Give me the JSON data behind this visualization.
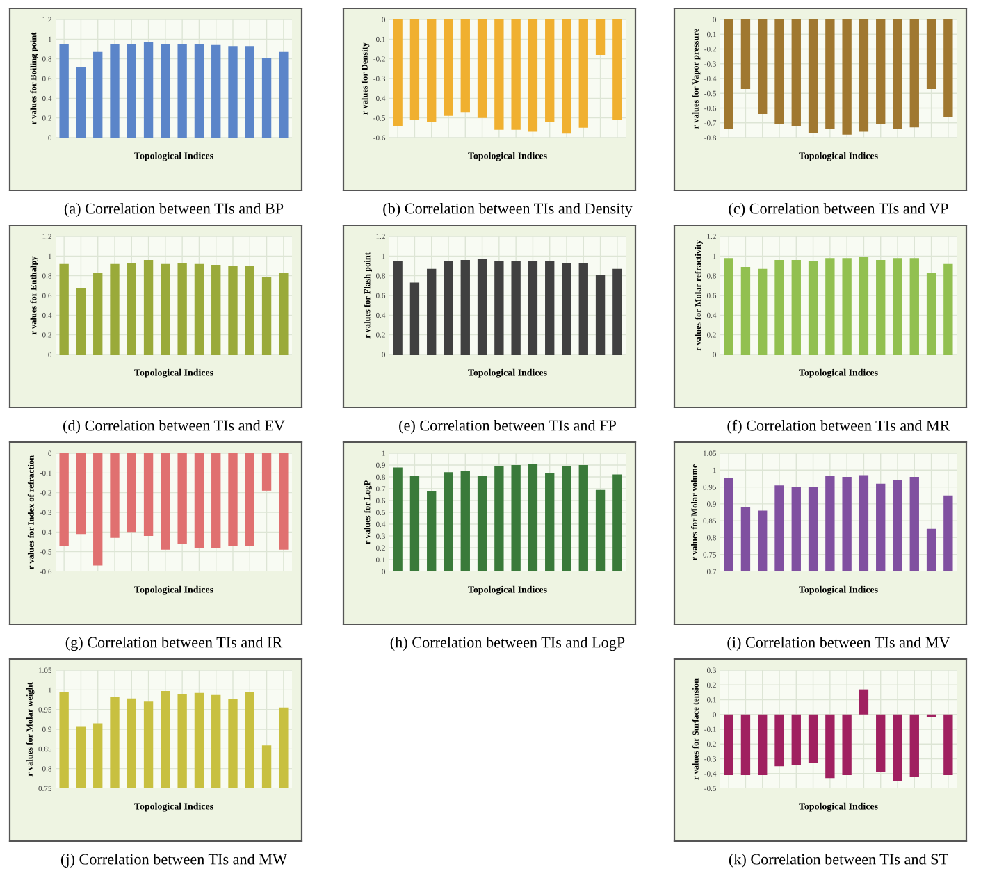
{
  "chart_data": [
    {
      "type": "bar",
      "title": "(a) Correlation between TIs and BP",
      "xlabel": "Topological Indices",
      "ylabel": "r values for Boiling point",
      "categories": [
        null,
        null,
        null,
        null,
        null,
        null,
        null,
        null,
        null,
        null,
        null,
        null,
        null,
        null
      ],
      "values": [
        0.95,
        0.72,
        0.87,
        0.95,
        0.95,
        0.97,
        0.95,
        0.95,
        0.95,
        0.94,
        0.93,
        0.93,
        0.81,
        0.87
      ],
      "color": "#5b85c9",
      "ylim": [
        0,
        1.2
      ],
      "yticks": [
        0,
        0.2,
        0.4,
        0.6,
        0.8,
        1,
        1.2
      ],
      "grid": true
    },
    {
      "type": "bar",
      "title": "(b) Correlation between TIs and Density",
      "xlabel": "Topological Indices",
      "ylabel": "r values for Density",
      "categories": [
        null,
        null,
        null,
        null,
        null,
        null,
        null,
        null,
        null,
        null,
        null,
        null,
        null,
        null
      ],
      "values": [
        -0.54,
        -0.51,
        -0.52,
        -0.49,
        -0.47,
        -0.5,
        -0.56,
        -0.56,
        -0.57,
        -0.52,
        -0.58,
        -0.55,
        -0.18,
        -0.51
      ],
      "color": "#f0b030",
      "ylim": [
        -0.6,
        0
      ],
      "yticks": [
        -0.6,
        -0.5,
        -0.4,
        -0.3,
        -0.2,
        -0.1,
        0
      ],
      "grid": true
    },
    {
      "type": "bar",
      "title": "(c) Correlation between TIs and VP",
      "xlabel": "Topological Indices",
      "ylabel": "r values for Vapor pressure",
      "categories": [
        null,
        null,
        null,
        null,
        null,
        null,
        null,
        null,
        null,
        null,
        null,
        null,
        null,
        null
      ],
      "values": [
        -0.74,
        -0.47,
        -0.64,
        -0.71,
        -0.72,
        -0.77,
        -0.74,
        -0.78,
        -0.76,
        -0.71,
        -0.74,
        -0.73,
        -0.47,
        -0.66
      ],
      "color": "#a07830",
      "ylim": [
        -0.8,
        0
      ],
      "yticks": [
        -0.8,
        -0.7,
        -0.6,
        -0.5,
        -0.4,
        -0.3,
        -0.2,
        -0.1,
        0
      ],
      "grid": true
    },
    {
      "type": "bar",
      "title": "(d) Correlation between TIs and EV",
      "xlabel": "Topological Indices",
      "ylabel": "r values for Enthalpy",
      "categories": [
        null,
        null,
        null,
        null,
        null,
        null,
        null,
        null,
        null,
        null,
        null,
        null,
        null,
        null
      ],
      "values": [
        0.92,
        0.67,
        0.83,
        0.92,
        0.93,
        0.96,
        0.92,
        0.93,
        0.92,
        0.91,
        0.9,
        0.9,
        0.79,
        0.83
      ],
      "color": "#9aaa3a",
      "ylim": [
        0,
        1.2
      ],
      "yticks": [
        0,
        0.2,
        0.4,
        0.6,
        0.8,
        1,
        1.2
      ],
      "grid": true
    },
    {
      "type": "bar",
      "title": "(e) Correlation between TIs and FP",
      "xlabel": "Topological Indices",
      "ylabel": "r values for Flash point",
      "categories": [
        null,
        null,
        null,
        null,
        null,
        null,
        null,
        null,
        null,
        null,
        null,
        null,
        null,
        null
      ],
      "values": [
        0.95,
        0.73,
        0.87,
        0.95,
        0.96,
        0.97,
        0.95,
        0.95,
        0.95,
        0.95,
        0.93,
        0.93,
        0.81,
        0.87
      ],
      "color": "#404040",
      "ylim": [
        0,
        1.2
      ],
      "yticks": [
        0,
        0.2,
        0.4,
        0.6,
        0.8,
        1,
        1.2
      ],
      "grid": true
    },
    {
      "type": "bar",
      "title": "(f) Correlation between TIs and MR",
      "xlabel": "Topological Indices",
      "ylabel": "r values for Molar refractivity",
      "categories": [
        null,
        null,
        null,
        null,
        null,
        null,
        null,
        null,
        null,
        null,
        null,
        null,
        null,
        null
      ],
      "values": [
        0.98,
        0.89,
        0.87,
        0.96,
        0.96,
        0.95,
        0.98,
        0.98,
        0.99,
        0.96,
        0.98,
        0.98,
        0.83,
        0.92
      ],
      "color": "#92c050",
      "ylim": [
        0,
        1.2
      ],
      "yticks": [
        0,
        0.2,
        0.4,
        0.6,
        0.8,
        1,
        1.2
      ],
      "grid": true
    },
    {
      "type": "bar",
      "title": "(g) Correlation between TIs and IR",
      "xlabel": "Topological Indices",
      "ylabel": "r values for Index of refraction",
      "categories": [
        null,
        null,
        null,
        null,
        null,
        null,
        null,
        null,
        null,
        null,
        null,
        null,
        null,
        null
      ],
      "values": [
        -0.47,
        -0.41,
        -0.57,
        -0.43,
        -0.4,
        -0.42,
        -0.49,
        -0.46,
        -0.48,
        -0.48,
        -0.47,
        -0.47,
        -0.19,
        -0.49
      ],
      "color": "#e07070",
      "ylim": [
        -0.6,
        0
      ],
      "yticks": [
        -0.6,
        -0.5,
        -0.4,
        -0.3,
        -0.2,
        -0.1,
        0
      ],
      "grid": true
    },
    {
      "type": "bar",
      "title": "(h) Correlation between TIs and LogP",
      "xlabel": "Topological Indices",
      "ylabel": "r values for LogP",
      "categories": [
        null,
        null,
        null,
        null,
        null,
        null,
        null,
        null,
        null,
        null,
        null,
        null,
        null,
        null
      ],
      "values": [
        0.88,
        0.81,
        0.68,
        0.84,
        0.85,
        0.81,
        0.89,
        0.9,
        0.91,
        0.83,
        0.89,
        0.9,
        0.69,
        0.82
      ],
      "color": "#3a7a3a",
      "ylim": [
        0,
        1
      ],
      "yticks": [
        0,
        0.1,
        0.2,
        0.3,
        0.4,
        0.5,
        0.6,
        0.7,
        0.8,
        0.9,
        1
      ],
      "grid": true
    },
    {
      "type": "bar",
      "title": "(i) Correlation between TIs and MV",
      "xlabel": "Topological Indices",
      "ylabel": "r values for Molar volume",
      "categories": [
        null,
        null,
        null,
        null,
        null,
        null,
        null,
        null,
        null,
        null,
        null,
        null,
        null,
        null
      ],
      "values": [
        0.977,
        0.89,
        0.88,
        0.955,
        0.95,
        0.95,
        0.983,
        0.98,
        0.985,
        0.96,
        0.97,
        0.98,
        0.826,
        0.925
      ],
      "color": "#8050a0",
      "ylim": [
        0.7,
        1.05
      ],
      "yticks": [
        0.7,
        0.75,
        0.8,
        0.85,
        0.9,
        0.95,
        1,
        1.05
      ],
      "grid": true
    },
    {
      "type": "bar",
      "title": "(j) Correlation between TIs and MW",
      "xlabel": "Topological Indices",
      "ylabel": "r values for Molar weight",
      "categories": [
        null,
        null,
        null,
        null,
        null,
        null,
        null,
        null,
        null,
        null,
        null,
        null,
        null,
        null
      ],
      "values": [
        0.994,
        0.906,
        0.915,
        0.983,
        0.978,
        0.97,
        0.997,
        0.989,
        0.992,
        0.987,
        0.976,
        0.994,
        0.859,
        0.955
      ],
      "color": "#c8c040",
      "ylim": [
        0.75,
        1.05
      ],
      "yticks": [
        0.75,
        0.8,
        0.85,
        0.9,
        0.95,
        1,
        1.05
      ],
      "grid": true
    },
    {
      "type": "bar",
      "title": "(k) Correlation between TIs and ST",
      "xlabel": "Topological Indices",
      "ylabel": "r values for Surface tension",
      "categories": [
        null,
        null,
        null,
        null,
        null,
        null,
        null,
        null,
        null,
        null,
        null,
        null,
        null,
        null
      ],
      "values": [
        -0.41,
        -0.41,
        -0.41,
        -0.35,
        -0.34,
        -0.33,
        -0.43,
        -0.41,
        0.17,
        -0.39,
        -0.45,
        -0.42,
        -0.02,
        -0.41
      ],
      "color": "#a02060",
      "ylim": [
        -0.5,
        0.3
      ],
      "yticks": [
        -0.5,
        -0.4,
        -0.3,
        -0.2,
        -0.1,
        0,
        0.1,
        0.2,
        0.3
      ],
      "grid": true
    }
  ]
}
